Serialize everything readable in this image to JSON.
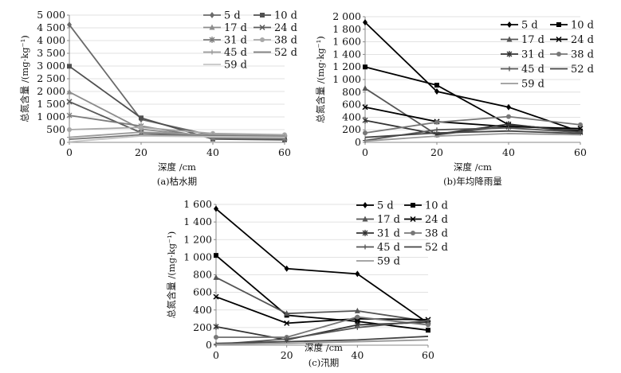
{
  "chart_data": [
    {
      "type": "line",
      "caption": "(a)枯水期",
      "xlabel": "深度 /cm",
      "ylabel": "总氮含量 /(mg·kg⁻¹)",
      "x": [
        0,
        20,
        40,
        60
      ],
      "xticks": [
        "0",
        "20",
        "40",
        "60"
      ],
      "xlim": [
        0,
        60
      ],
      "ylim": [
        0,
        5000
      ],
      "yticks": [
        0,
        500,
        1000,
        1500,
        2000,
        2500,
        3000,
        3500,
        4000,
        4500,
        5000
      ],
      "ytick_labels": [
        "0",
        "500",
        "1 000",
        "1 500",
        "2 000",
        "2 500",
        "3 000",
        "3 500",
        "4 000",
        "4 500",
        "5 000"
      ],
      "legend_position": "top-right",
      "series": [
        {
          "name": "5 d",
          "values": [
            4620,
            900,
            270,
            160
          ],
          "color": "#6a6a6a",
          "marker": "diamond"
        },
        {
          "name": "10 d",
          "values": [
            2990,
            960,
            130,
            100
          ],
          "color": "#505050",
          "marker": "square"
        },
        {
          "name": "17 d",
          "values": [
            1980,
            520,
            200,
            180
          ],
          "color": "#8c8c8c",
          "marker": "triangle"
        },
        {
          "name": "24 d",
          "values": [
            1600,
            380,
            230,
            200
          ],
          "color": "#5a5a5a",
          "marker": "x"
        },
        {
          "name": "31 d",
          "values": [
            1060,
            640,
            170,
            150
          ],
          "color": "#7c7c7c",
          "marker": "star"
        },
        {
          "name": "38 d",
          "values": [
            500,
            590,
            350,
            300
          ],
          "color": "#a8a8a8",
          "marker": "circle"
        },
        {
          "name": "45 d",
          "values": [
            200,
            400,
            300,
            250
          ],
          "color": "#9a9a9a",
          "marker": "plus"
        },
        {
          "name": "52 d",
          "values": [
            120,
            300,
            260,
            230
          ],
          "color": "#7a7a7a",
          "marker": "none"
        },
        {
          "name": "59 d",
          "values": [
            20,
            250,
            220,
            200
          ],
          "color": "#c4c4c4",
          "marker": "none"
        }
      ]
    },
    {
      "type": "line",
      "caption": "(b)年均降雨量",
      "xlabel": "深度 /cm",
      "ylabel": "总氮含量 /(mg·kg⁻¹)",
      "x": [
        0,
        20,
        40,
        60
      ],
      "xticks": [
        "0",
        "20",
        "40",
        "60"
      ],
      "xlim": [
        0,
        60
      ],
      "ylim": [
        0,
        2000
      ],
      "yticks": [
        0,
        200,
        400,
        600,
        800,
        1000,
        1200,
        1400,
        1600,
        1800,
        2000
      ],
      "ytick_labels": [
        "0",
        "200",
        "400",
        "600",
        "800",
        "1 000",
        "1 200",
        "1 400",
        "1 600",
        "1 800",
        "2 000"
      ],
      "legend_position": "top-right",
      "series": [
        {
          "name": "5 d",
          "values": [
            1910,
            810,
            560,
            170
          ],
          "color": "#000000",
          "marker": "diamond"
        },
        {
          "name": "10 d",
          "values": [
            1200,
            910,
            280,
            180
          ],
          "color": "#000000",
          "marker": "square"
        },
        {
          "name": "17 d",
          "values": [
            860,
            120,
            260,
            200
          ],
          "color": "#555555",
          "marker": "triangle"
        },
        {
          "name": "24 d",
          "values": [
            560,
            330,
            250,
            220
          ],
          "color": "#000000",
          "marker": "x"
        },
        {
          "name": "31 d",
          "values": [
            350,
            130,
            290,
            160
          ],
          "color": "#333333",
          "marker": "star"
        },
        {
          "name": "38 d",
          "values": [
            150,
            320,
            410,
            280
          ],
          "color": "#777777",
          "marker": "circle"
        },
        {
          "name": "45 d",
          "values": [
            30,
            200,
            230,
            160
          ],
          "color": "#555555",
          "marker": "plus"
        },
        {
          "name": "52 d",
          "values": [
            80,
            150,
            180,
            140
          ],
          "color": "#444444",
          "marker": "none"
        },
        {
          "name": "59 d",
          "values": [
            20,
            100,
            140,
            120
          ],
          "color": "#999999",
          "marker": "none"
        }
      ]
    },
    {
      "type": "line",
      "caption": "(c)汛期",
      "xlabel": "深度 /cm",
      "ylabel": "总氮含量 /(mg·kg⁻¹)",
      "x": [
        0,
        20,
        40,
        60
      ],
      "xticks": [
        "0",
        "20",
        "40",
        "60"
      ],
      "xlim": [
        0,
        60
      ],
      "ylim": [
        0,
        1600
      ],
      "yticks": [
        0,
        200,
        400,
        600,
        800,
        1000,
        1200,
        1400,
        1600
      ],
      "ytick_labels": [
        "0",
        "200",
        "400",
        "600",
        "800",
        "1 000",
        "1 200",
        "1 400",
        "1 600"
      ],
      "legend_position": "top-right",
      "series": [
        {
          "name": "5 d",
          "values": [
            1550,
            870,
            810,
            250
          ],
          "color": "#000000",
          "marker": "diamond"
        },
        {
          "name": "10 d",
          "values": [
            1020,
            340,
            270,
            170
          ],
          "color": "#000000",
          "marker": "square"
        },
        {
          "name": "17 d",
          "values": [
            770,
            360,
            390,
            270
          ],
          "color": "#555555",
          "marker": "triangle"
        },
        {
          "name": "24 d",
          "values": [
            550,
            250,
            300,
            290
          ],
          "color": "#000000",
          "marker": "x"
        },
        {
          "name": "31 d",
          "values": [
            210,
            60,
            230,
            260
          ],
          "color": "#333333",
          "marker": "star"
        },
        {
          "name": "38 d",
          "values": [
            90,
            90,
            320,
            230
          ],
          "color": "#777777",
          "marker": "circle"
        },
        {
          "name": "45 d",
          "values": [
            10,
            70,
            200,
            280
          ],
          "color": "#555555",
          "marker": "plus"
        },
        {
          "name": "52 d",
          "values": [
            20,
            40,
            60,
            100
          ],
          "color": "#444444",
          "marker": "none"
        },
        {
          "name": "59 d",
          "values": [
            10,
            20,
            40,
            60
          ],
          "color": "#999999",
          "marker": "none"
        }
      ]
    }
  ]
}
